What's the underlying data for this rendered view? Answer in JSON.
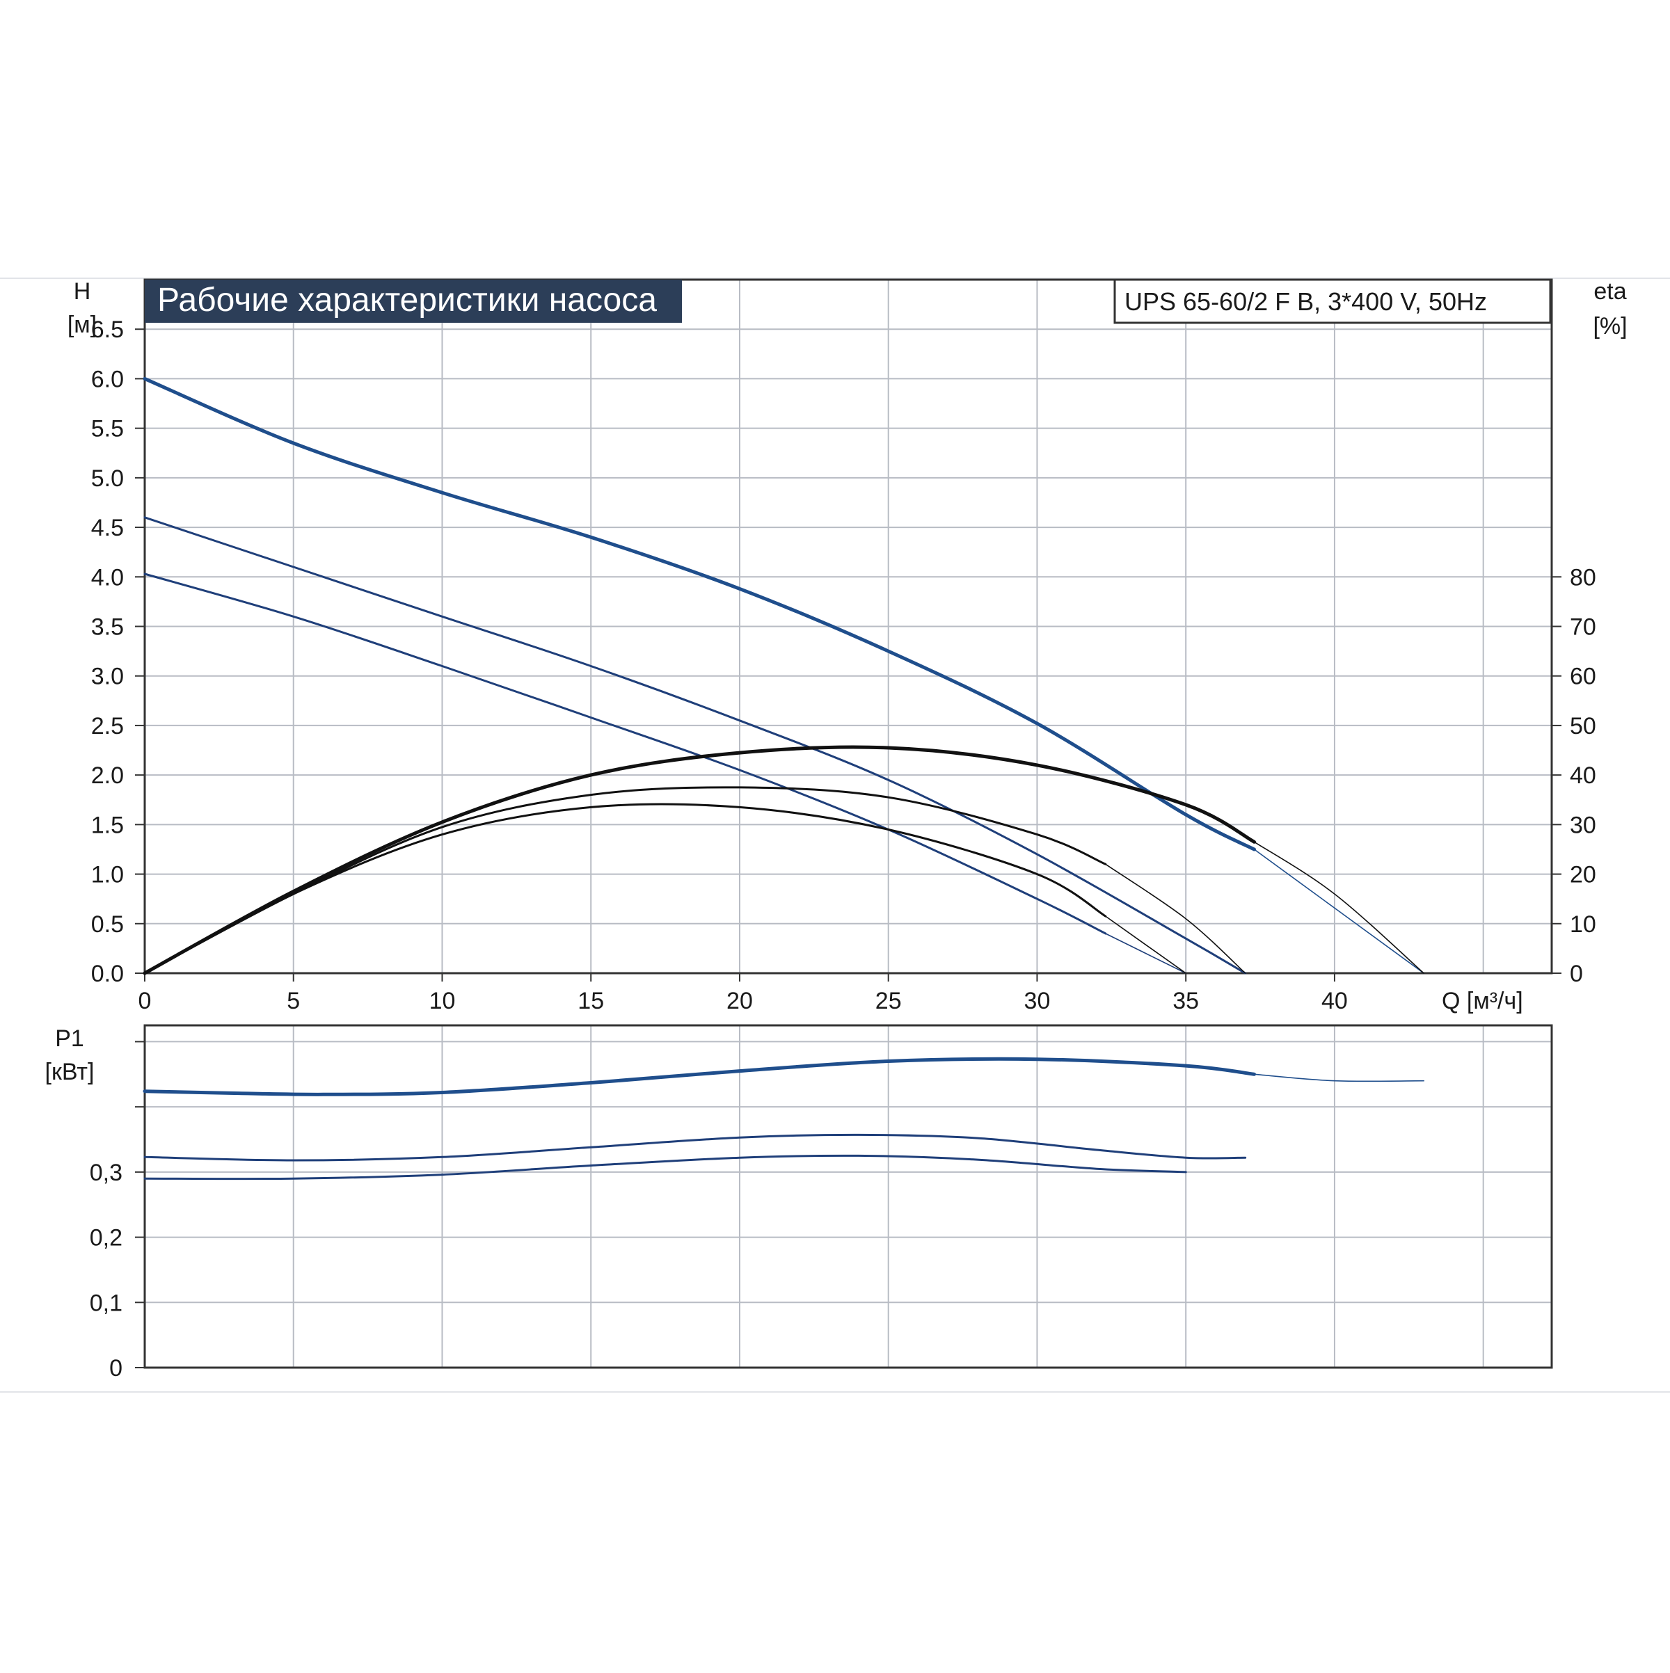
{
  "chart_data": [
    {
      "type": "line",
      "title": "Рабочие характеристики насоса",
      "subtitle": "UPS 65-60/2 F B, 3*400 V, 50Hz",
      "ylabel_left": [
        "H",
        "[м]"
      ],
      "ylabel_right": [
        "eta",
        "[%]"
      ],
      "xlabel": "Q [м³/ч]",
      "xlim": [
        0,
        47.3
      ],
      "ylim": [
        0,
        7
      ],
      "y2lim": [
        0,
        140
      ],
      "xticks": [
        "0",
        "5",
        "10",
        "15",
        "20",
        "25",
        "30",
        "35",
        "40"
      ],
      "yticks": [
        "0.0",
        "0.5",
        "1.0",
        "1.5",
        "2.0",
        "2.5",
        "3.0",
        "3.5",
        "4.0",
        "4.5",
        "5.0",
        "5.5",
        "6.0",
        "6.5"
      ],
      "y2ticks": [
        "0",
        "10",
        "20",
        "30",
        "40",
        "50",
        "60",
        "70",
        "80"
      ],
      "grid": true,
      "series": [
        {
          "kind": "head",
          "speed": "high",
          "color": "#1f4e8c",
          "weight": 5,
          "x": [
            0,
            5,
            10,
            15,
            20,
            25,
            30,
            35,
            37.3
          ],
          "y": [
            6.0,
            5.35,
            4.85,
            4.4,
            3.88,
            3.25,
            2.52,
            1.6,
            1.25
          ],
          "tail_x": [
            37.3,
            43
          ],
          "tail_y": [
            1.25,
            0.0
          ]
        },
        {
          "kind": "head",
          "speed": "medium",
          "color": "#1f3f7a",
          "weight": 3,
          "x": [
            0,
            5,
            10,
            15,
            20,
            25,
            30,
            35,
            37
          ],
          "y": [
            4.6,
            4.1,
            3.6,
            3.1,
            2.55,
            1.95,
            1.2,
            0.35,
            0.0
          ]
        },
        {
          "kind": "head",
          "speed": "low",
          "color": "#1f3f7a",
          "weight": 3,
          "x": [
            0,
            5,
            10,
            15,
            20,
            25,
            30,
            32.3
          ],
          "y": [
            4.03,
            3.6,
            3.1,
            2.58,
            2.05,
            1.45,
            0.75,
            0.4
          ],
          "tail_x": [
            32.3,
            35
          ],
          "tail_y": [
            0.4,
            0.0
          ]
        },
        {
          "kind": "efficiency",
          "speed": "high",
          "color": "#111111",
          "weight": 5,
          "x": [
            0,
            5,
            10,
            15,
            20,
            25,
            30,
            35,
            37.3
          ],
          "y": [
            0,
            16.5,
            30.5,
            40,
            44.5,
            45.5,
            42,
            34,
            26.5
          ],
          "tail_x": [
            37.3,
            40,
            43
          ],
          "tail_y": [
            26.5,
            16,
            0
          ]
        },
        {
          "kind": "efficiency",
          "speed": "medium",
          "color": "#111111",
          "weight": 3,
          "x": [
            0,
            5,
            10,
            15,
            20,
            25,
            30,
            32.3
          ],
          "y": [
            0,
            16,
            29.5,
            36,
            37.5,
            35.5,
            28,
            22
          ],
          "tail_x": [
            32.3,
            35,
            37
          ],
          "tail_y": [
            22,
            11,
            0
          ]
        },
        {
          "kind": "efficiency",
          "speed": "low",
          "color": "#111111",
          "weight": 3,
          "x": [
            0,
            5,
            10,
            15,
            20,
            25,
            30,
            32.3
          ],
          "y": [
            0,
            16,
            28,
            33.5,
            33.5,
            29,
            20,
            11.5
          ],
          "tail_x": [
            32.3,
            35
          ],
          "tail_y": [
            11.5,
            0
          ]
        }
      ]
    },
    {
      "type": "line",
      "ylabel": [
        "P1",
        "[кВт]"
      ],
      "xlim": [
        0,
        47.3
      ],
      "ylim": [
        0,
        0.525
      ],
      "yticks": [
        "0",
        "0,1",
        "0,2",
        "0,3"
      ],
      "grid": true,
      "series": [
        {
          "kind": "power",
          "speed": "high",
          "color": "#1f4e8c",
          "weight": 5,
          "x": [
            0,
            3,
            6,
            10,
            15,
            20,
            25,
            30,
            35,
            37.3
          ],
          "y": [
            0.424,
            0.421,
            0.419,
            0.422,
            0.437,
            0.455,
            0.47,
            0.473,
            0.463,
            0.45
          ],
          "tail_x": [
            37.3,
            40,
            43
          ],
          "tail_y": [
            0.45,
            0.44,
            0.44
          ]
        },
        {
          "kind": "power",
          "speed": "medium",
          "color": "#1f3f7a",
          "weight": 3,
          "x": [
            0,
            5,
            10,
            15,
            20,
            24,
            28,
            32,
            35,
            37
          ],
          "y": [
            0.323,
            0.318,
            0.323,
            0.338,
            0.353,
            0.357,
            0.352,
            0.334,
            0.322,
            0.322
          ]
        },
        {
          "kind": "power",
          "speed": "low",
          "color": "#1f3f7a",
          "weight": 3,
          "x": [
            0,
            5,
            10,
            15,
            20,
            24,
            28,
            32,
            35
          ],
          "y": [
            0.29,
            0.29,
            0.296,
            0.31,
            0.322,
            0.325,
            0.319,
            0.305,
            0.3
          ]
        }
      ]
    }
  ]
}
